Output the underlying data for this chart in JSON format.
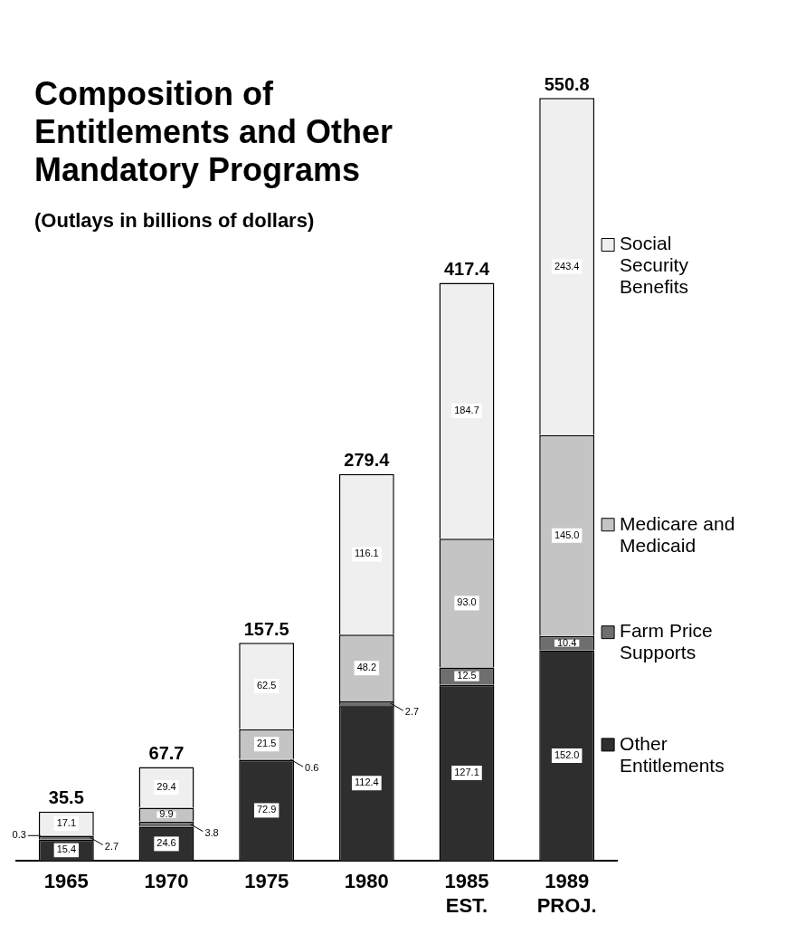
{
  "chart_data": {
    "type": "bar",
    "title": "Composition of\nEntitlements and Other\nMandatory Programs",
    "subtitle": "(Outlays in billions of dollars)",
    "categories": [
      "1965",
      "1970",
      "1975",
      "1980",
      "1985\nEST.",
      "1989\nPROJ."
    ],
    "stacked": true,
    "legend": "right",
    "grid": false,
    "series": [
      {
        "name": "Other\nEntitlements",
        "color": "#2e2e2e",
        "values": [
          15.4,
          24.6,
          72.9,
          112.4,
          127.1,
          152.0
        ],
        "value_labels": [
          "15.4",
          "24.6",
          "72.9",
          "112.4",
          "127.1",
          "152.0"
        ]
      },
      {
        "name": "Farm Price\nSupports",
        "color": "#6e6e6e",
        "values": [
          2.7,
          3.8,
          0.6,
          2.7,
          12.5,
          10.4
        ],
        "value_labels": [
          "2.7",
          "3.8",
          "0.6",
          "2.7",
          "12.5",
          "10.4"
        ]
      },
      {
        "name": "Medicare and\nMedicaid",
        "color": "#c4c4c4",
        "values": [
          0.3,
          9.9,
          21.5,
          48.2,
          93.0,
          145.0
        ],
        "value_labels": [
          "0.3",
          "9.9",
          "21.5",
          "48.2",
          "93.0",
          "145.0"
        ]
      },
      {
        "name": "Social\nSecurity\nBenefits",
        "color": "#efefef",
        "values": [
          17.1,
          29.4,
          62.5,
          116.1,
          184.7,
          243.4
        ],
        "value_labels": [
          "17.1",
          "29.4",
          "62.5",
          "116.1",
          "184.7",
          "243.4"
        ]
      }
    ],
    "totals": [
      "35.5",
      "67.7",
      "157.5",
      "279.4",
      "417.4",
      "550.8"
    ]
  }
}
